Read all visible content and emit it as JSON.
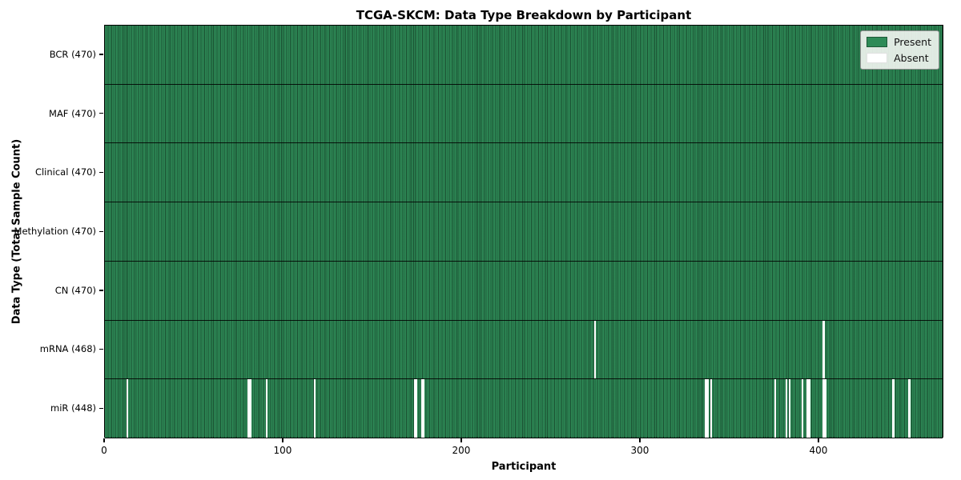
{
  "chart_data": {
    "type": "heatmap",
    "title": "TCGA-SKCM: Data Type Breakdown by Participant",
    "xlabel": "Participant",
    "ylabel": "Data Type (Total Sample Count)",
    "x_range": [
      0,
      470
    ],
    "x_ticks": [
      0,
      100,
      200,
      300,
      400
    ],
    "n_participants": 470,
    "grid": false,
    "legend": {
      "position": "upper right",
      "entries": [
        {
          "label": "Present",
          "color": "#2e8b57"
        },
        {
          "label": "Absent",
          "color": "#ffffff"
        }
      ]
    },
    "colors": {
      "present": "#2e8b57",
      "absent": "#ffffff",
      "cell_edge": "#14301f",
      "row_separator": "#0d2418",
      "axes_border": "#000000"
    },
    "rows": [
      {
        "name": "BCR",
        "label": "BCR (470)",
        "present_count": 470,
        "absent_participants": []
      },
      {
        "name": "MAF",
        "label": "MAF (470)",
        "present_count": 470,
        "absent_participants": []
      },
      {
        "name": "Clinical",
        "label": "Clinical (470)",
        "present_count": 470,
        "absent_participants": []
      },
      {
        "name": "Methylation",
        "label": "Methylation (470)",
        "present_count": 470,
        "absent_participants": []
      },
      {
        "name": "CN",
        "label": "CN (470)",
        "present_count": 470,
        "absent_participants": []
      },
      {
        "name": "mRNA",
        "label": "mRNA (468)",
        "present_count": 468,
        "absent_participants": [
          274,
          402
        ]
      },
      {
        "name": "miR",
        "label": "miR (448)",
        "present_count": 448,
        "absent_participants": [
          12,
          80,
          81,
          90,
          117,
          173,
          174,
          177,
          178,
          336,
          337,
          339,
          375,
          381,
          383,
          390,
          393,
          394,
          402,
          403,
          441,
          450
        ]
      }
    ]
  }
}
